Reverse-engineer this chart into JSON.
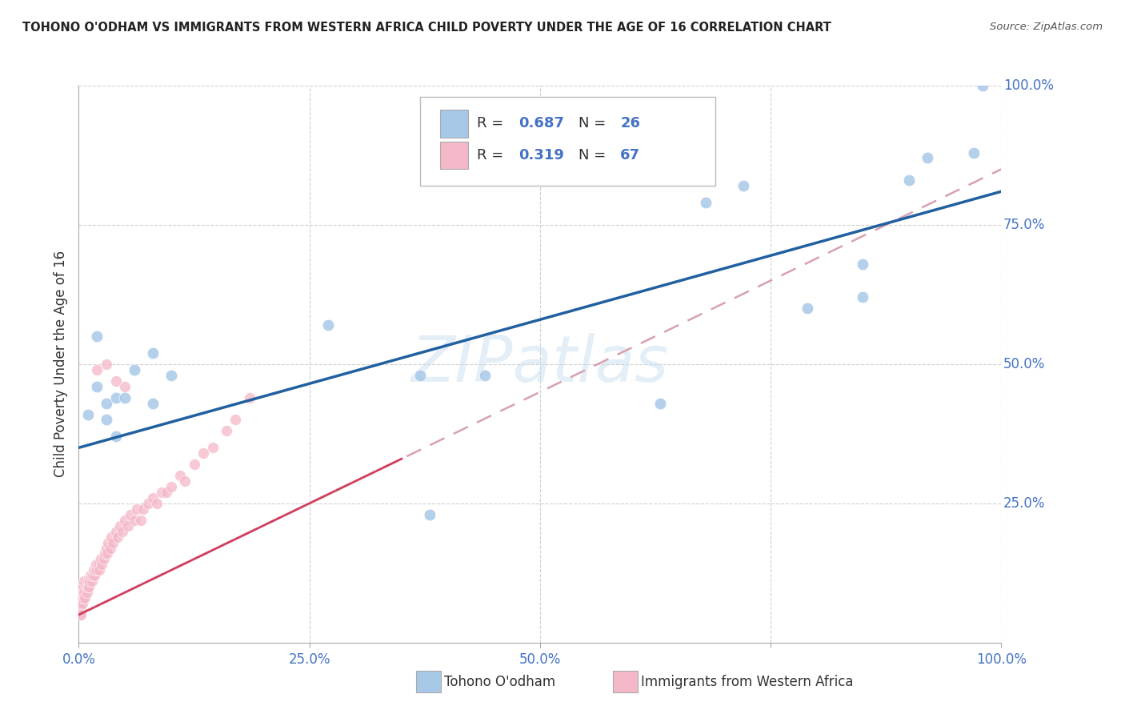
{
  "title": "TOHONO O'ODHAM VS IMMIGRANTS FROM WESTERN AFRICA CHILD POVERTY UNDER THE AGE OF 16 CORRELATION CHART",
  "source": "Source: ZipAtlas.com",
  "ylabel": "Child Poverty Under the Age of 16",
  "R1": 0.687,
  "N1": 26,
  "R2": 0.319,
  "N2": 67,
  "blue_color": "#a8c8e8",
  "pink_color": "#f4b8c8",
  "line_blue": "#2060a0",
  "line_pink_solid": "#d04060",
  "line_pink_dash": "#d8a0b0",
  "watermark": "ZIPatlas",
  "blue_scatter_x": [
    0.01,
    0.02,
    0.02,
    0.03,
    0.03,
    0.04,
    0.04,
    0.05,
    0.06,
    0.08,
    0.08,
    0.1,
    0.27,
    0.37,
    0.38,
    0.44,
    0.63,
    0.68,
    0.72,
    0.79,
    0.85,
    0.85,
    0.9,
    0.92,
    0.97,
    0.98
  ],
  "blue_scatter_y": [
    0.41,
    0.55,
    0.46,
    0.43,
    0.4,
    0.44,
    0.37,
    0.44,
    0.49,
    0.52,
    0.43,
    0.48,
    0.57,
    0.48,
    0.23,
    0.48,
    0.43,
    0.79,
    0.82,
    0.6,
    0.68,
    0.62,
    0.83,
    0.87,
    0.88,
    1.0
  ],
  "pink_scatter_x": [
    0.001,
    0.001,
    0.002,
    0.002,
    0.002,
    0.003,
    0.004,
    0.005,
    0.005,
    0.006,
    0.006,
    0.007,
    0.008,
    0.009,
    0.01,
    0.01,
    0.011,
    0.012,
    0.013,
    0.014,
    0.015,
    0.016,
    0.017,
    0.018,
    0.019,
    0.02,
    0.021,
    0.022,
    0.024,
    0.025,
    0.027,
    0.028,
    0.03,
    0.031,
    0.032,
    0.034,
    0.035,
    0.037,
    0.04,
    0.042,
    0.045,
    0.047,
    0.05,
    0.053,
    0.056,
    0.06,
    0.063,
    0.067,
    0.07,
    0.075,
    0.08,
    0.085,
    0.09,
    0.095,
    0.1,
    0.11,
    0.115,
    0.125,
    0.135,
    0.145,
    0.16,
    0.17,
    0.185,
    0.02,
    0.03,
    0.04,
    0.05
  ],
  "pink_scatter_y": [
    0.05,
    0.07,
    0.06,
    0.08,
    0.05,
    0.09,
    0.07,
    0.08,
    0.1,
    0.09,
    0.11,
    0.08,
    0.1,
    0.09,
    0.1,
    0.11,
    0.1,
    0.11,
    0.12,
    0.11,
    0.12,
    0.13,
    0.12,
    0.13,
    0.14,
    0.13,
    0.14,
    0.13,
    0.15,
    0.14,
    0.15,
    0.16,
    0.17,
    0.16,
    0.18,
    0.17,
    0.19,
    0.18,
    0.2,
    0.19,
    0.21,
    0.2,
    0.22,
    0.21,
    0.23,
    0.22,
    0.24,
    0.22,
    0.24,
    0.25,
    0.26,
    0.25,
    0.27,
    0.27,
    0.28,
    0.3,
    0.29,
    0.32,
    0.34,
    0.35,
    0.38,
    0.4,
    0.44,
    0.49,
    0.5,
    0.47,
    0.46
  ],
  "xlim": [
    0.0,
    1.0
  ],
  "ylim": [
    0.0,
    1.0
  ],
  "xticks": [
    0.0,
    0.25,
    0.5,
    0.75,
    1.0
  ],
  "yticks": [
    0.25,
    0.5,
    0.75,
    1.0
  ],
  "xticklabels_shown": [
    "0.0%",
    "25.0%",
    "50.0%",
    "",
    "100.0%"
  ],
  "yticklabels_shown": [
    "25.0%",
    "50.0%",
    "75.0%",
    "100.0%"
  ],
  "bg_color": "#ffffff",
  "grid_color": "#d0d0d0",
  "legend1_label": "Tohono O'odham",
  "legend2_label": "Immigrants from Western Africa"
}
